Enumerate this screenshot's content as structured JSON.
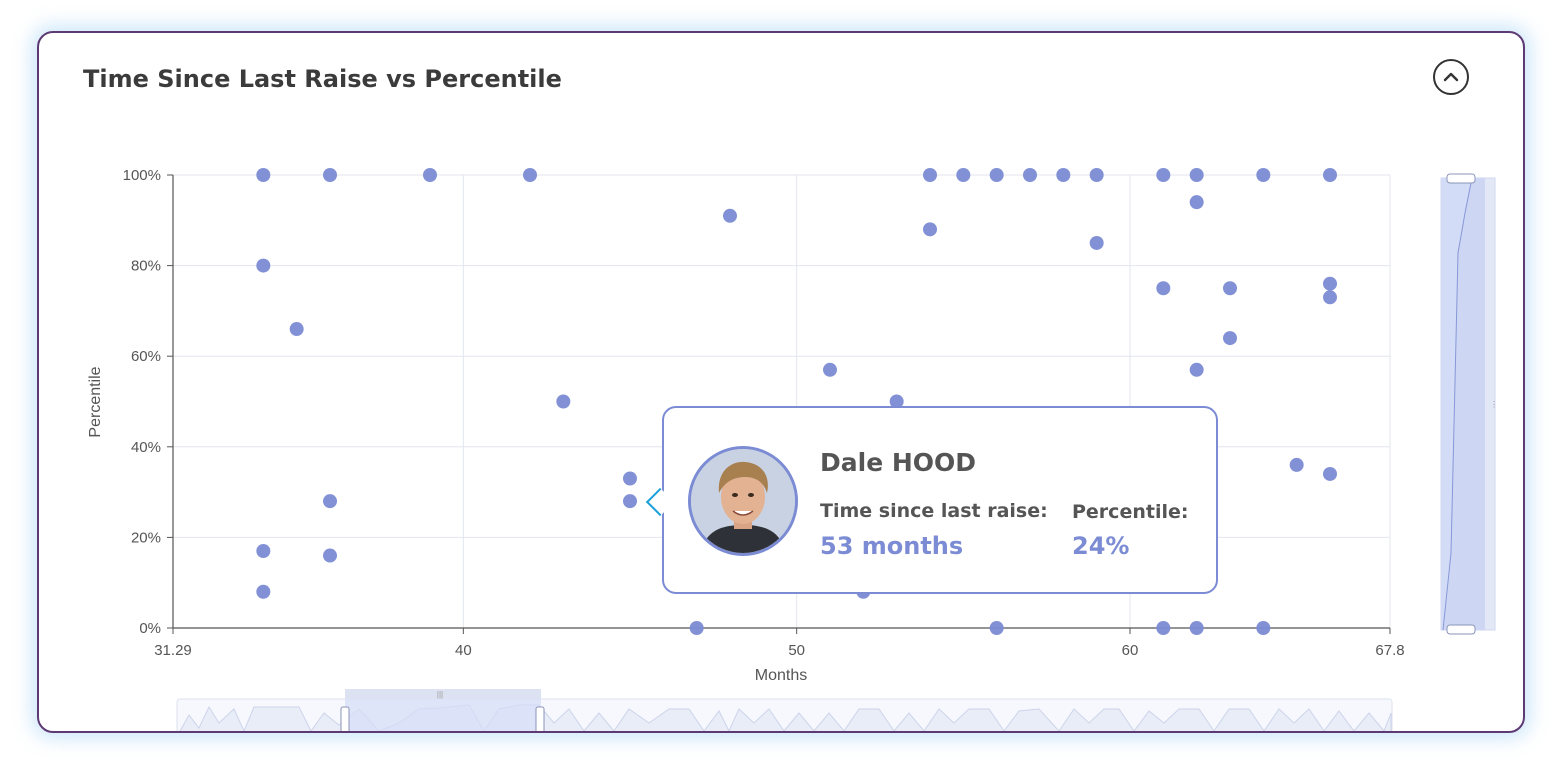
{
  "title": "Time Since Last Raise vs Percentile",
  "tooltip": {
    "name": "Dale HOOD",
    "time_label": "Time since last raise:",
    "time_value": "53 months",
    "percentile_label": "Percentile:",
    "percentile_value": "24%"
  },
  "colors": {
    "point": "#7b8bd4",
    "accent": "#7b8bd4",
    "border": "#5d3a74"
  },
  "icons": {
    "collapse": "chevron-up-icon"
  },
  "chart_data": {
    "type": "scatter",
    "title": "Time Since Last Raise vs Percentile",
    "xlabel": "Months",
    "ylabel": "Percentile",
    "xlim": [
      31.29,
      67.8
    ],
    "ylim": [
      0,
      100
    ],
    "x_ticks": [
      "31.29",
      "40",
      "50",
      "60",
      "67.8"
    ],
    "y_ticks": [
      "0%",
      "20%",
      "40%",
      "60%",
      "80%",
      "100%"
    ],
    "grid": true,
    "points": [
      {
        "x": 34,
        "y": 100
      },
      {
        "x": 36,
        "y": 100
      },
      {
        "x": 39,
        "y": 100
      },
      {
        "x": 42,
        "y": 100
      },
      {
        "x": 54,
        "y": 100
      },
      {
        "x": 55,
        "y": 100
      },
      {
        "x": 56,
        "y": 100
      },
      {
        "x": 57,
        "y": 100
      },
      {
        "x": 58,
        "y": 100
      },
      {
        "x": 59,
        "y": 100
      },
      {
        "x": 61,
        "y": 100
      },
      {
        "x": 62,
        "y": 100
      },
      {
        "x": 64,
        "y": 100
      },
      {
        "x": 66,
        "y": 100
      },
      {
        "x": 48,
        "y": 91
      },
      {
        "x": 62,
        "y": 94
      },
      {
        "x": 54,
        "y": 88
      },
      {
        "x": 59,
        "y": 85
      },
      {
        "x": 34,
        "y": 80
      },
      {
        "x": 61,
        "y": 75
      },
      {
        "x": 63,
        "y": 75
      },
      {
        "x": 66,
        "y": 76
      },
      {
        "x": 66,
        "y": 73
      },
      {
        "x": 35,
        "y": 66
      },
      {
        "x": 63,
        "y": 64
      },
      {
        "x": 51,
        "y": 57
      },
      {
        "x": 62,
        "y": 57
      },
      {
        "x": 43,
        "y": 50
      },
      {
        "x": 53,
        "y": 50
      },
      {
        "x": 65,
        "y": 36
      },
      {
        "x": 66,
        "y": 34
      },
      {
        "x": 45,
        "y": 33
      },
      {
        "x": 45,
        "y": 28
      },
      {
        "x": 36,
        "y": 28
      },
      {
        "x": 34,
        "y": 17
      },
      {
        "x": 36,
        "y": 16
      },
      {
        "x": 34,
        "y": 8
      },
      {
        "x": 52,
        "y": 8
      },
      {
        "x": 47,
        "y": 0
      },
      {
        "x": 56,
        "y": 0
      },
      {
        "x": 61,
        "y": 0
      },
      {
        "x": 62,
        "y": 0
      },
      {
        "x": 64,
        "y": 0
      }
    ],
    "highlighted_point": {
      "x": 53,
      "y": 24
    }
  }
}
